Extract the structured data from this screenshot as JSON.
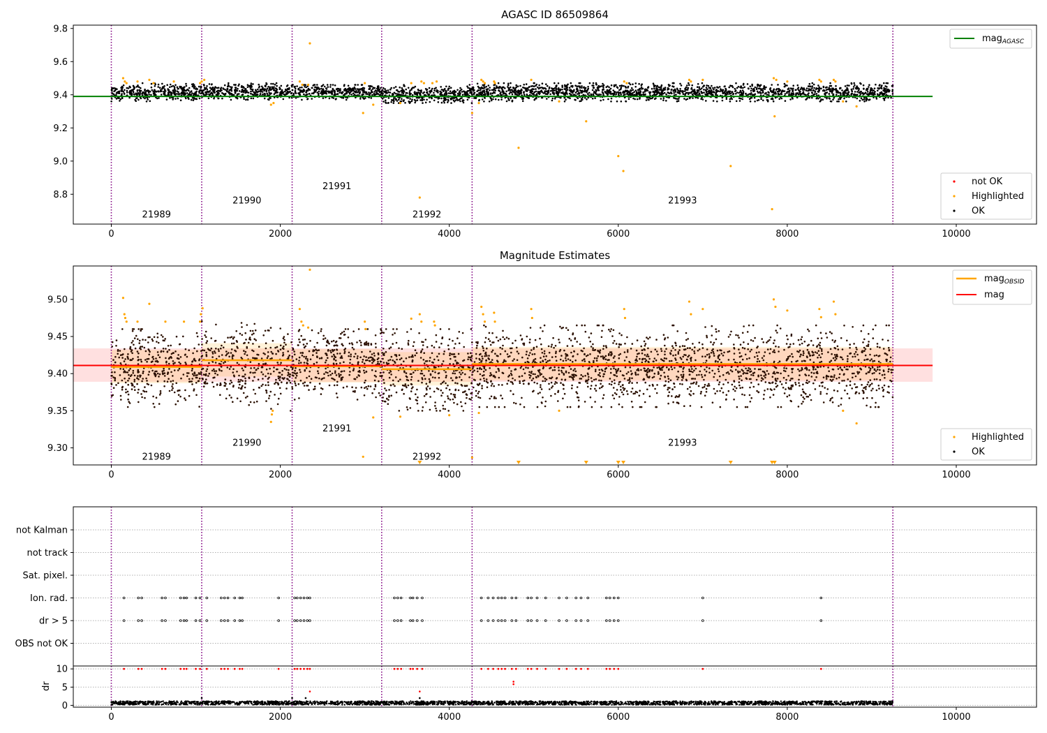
{
  "chart_data": [
    {
      "type": "scatter",
      "title": "AGASC ID 86509864",
      "xlim": [
        -450,
        10950
      ],
      "ylim": [
        8.62,
        9.82
      ],
      "xticks": [
        0,
        2000,
        4000,
        6000,
        8000,
        10000
      ],
      "yticks": [
        8.8,
        9.0,
        9.2,
        9.4,
        9.6,
        9.8
      ],
      "xtick_labels": [
        "0",
        "2000",
        "4000",
        "6000",
        "8000",
        "10000"
      ],
      "ytick_labels": [
        "8.8",
        "9.0",
        "9.2",
        "9.4",
        "9.6",
        "9.8"
      ],
      "grid": false,
      "legend_top": [
        {
          "label": "mag",
          "sub": "AGASC",
          "color": "#008000",
          "kind": "line"
        }
      ],
      "legend_bottom": [
        {
          "label": "not OK",
          "color": "#ff0000",
          "kind": "dot"
        },
        {
          "label": "Highlighted",
          "color": "#ffa500",
          "kind": "dot"
        },
        {
          "label": "OK",
          "color": "#000000",
          "kind": "dot"
        }
      ],
      "legend_top_position": "top-right",
      "legend_bottom_position": "lower-right",
      "lines": [
        {
          "name": "mag_AGASC",
          "y": 9.39,
          "x": [
            -450,
            9720
          ],
          "color": "#008000"
        }
      ],
      "series": [
        {
          "name": "OK",
          "color": "#000000",
          "segments": [
            {
              "x": [
                0,
                1070
              ],
              "y": [
                9.36,
                9.47
              ]
            },
            {
              "x": [
                1070,
                2140
              ],
              "y": [
                9.37,
                9.47
              ]
            },
            {
              "x": [
                2140,
                3200
              ],
              "y": [
                9.37,
                9.46
              ]
            },
            {
              "x": [
                3200,
                4270
              ],
              "y": [
                9.35,
                9.46
              ]
            },
            {
              "x": [
                4270,
                9250
              ],
              "y": [
                9.36,
                9.47
              ]
            }
          ]
        },
        {
          "name": "Highlighted",
          "color": "#ffa500",
          "points": [
            [
              140,
              9.5
            ],
            [
              160,
              9.48
            ],
            [
              180,
              9.47
            ],
            [
              310,
              9.48
            ],
            [
              450,
              9.49
            ],
            [
              500,
              9.47
            ],
            [
              740,
              9.48
            ],
            [
              1050,
              9.47
            ],
            [
              1070,
              9.48
            ],
            [
              1100,
              9.49
            ],
            [
              1890,
              9.34
            ],
            [
              1920,
              9.35
            ],
            [
              2230,
              9.48
            ],
            [
              2260,
              9.46
            ],
            [
              2330,
              9.46
            ],
            [
              2350,
              9.71
            ],
            [
              2980,
              9.29
            ],
            [
              3000,
              9.47
            ],
            [
              3100,
              9.34
            ],
            [
              3420,
              9.35
            ],
            [
              3550,
              9.47
            ],
            [
              3650,
              8.78
            ],
            [
              3670,
              9.48
            ],
            [
              3700,
              9.47
            ],
            [
              3800,
              9.47
            ],
            [
              3850,
              9.48
            ],
            [
              4270,
              9.29
            ],
            [
              4350,
              9.35
            ],
            [
              4380,
              9.49
            ],
            [
              4400,
              9.48
            ],
            [
              4420,
              9.47
            ],
            [
              4530,
              9.48
            ],
            [
              4540,
              9.47
            ],
            [
              4820,
              9.08
            ],
            [
              4970,
              9.49
            ],
            [
              5300,
              9.36
            ],
            [
              5620,
              9.24
            ],
            [
              6000,
              9.03
            ],
            [
              6060,
              8.94
            ],
            [
              6070,
              9.48
            ],
            [
              6100,
              9.47
            ],
            [
              6840,
              9.49
            ],
            [
              6860,
              9.48
            ],
            [
              7000,
              9.49
            ],
            [
              7330,
              8.97
            ],
            [
              7820,
              8.71
            ],
            [
              7840,
              9.5
            ],
            [
              7850,
              9.27
            ],
            [
              7870,
              9.49
            ],
            [
              8000,
              9.48
            ],
            [
              8380,
              9.49
            ],
            [
              8400,
              9.48
            ],
            [
              8550,
              9.49
            ],
            [
              8570,
              9.48
            ],
            [
              8660,
              9.36
            ],
            [
              8820,
              9.33
            ]
          ]
        }
      ],
      "obsid_boundaries": [
        0,
        1070,
        2140,
        3200,
        4270,
        9250
      ],
      "obsid_labels": [
        {
          "text": "21989",
          "x": 535,
          "y": 8.66
        },
        {
          "text": "21990",
          "x": 1605,
          "y": 8.745
        },
        {
          "text": "21991",
          "x": 2670,
          "y": 8.83
        },
        {
          "text": "21992",
          "x": 3735,
          "y": 8.66
        },
        {
          "text": "21993",
          "x": 6760,
          "y": 8.745
        }
      ]
    },
    {
      "type": "scatter",
      "title": "Magnitude Estimates",
      "xlim": [
        -450,
        10950
      ],
      "ylim": [
        9.277,
        9.545
      ],
      "xticks": [
        0,
        2000,
        4000,
        6000,
        8000,
        10000
      ],
      "yticks": [
        9.3,
        9.35,
        9.4,
        9.45,
        9.5
      ],
      "xtick_labels": [
        "0",
        "2000",
        "4000",
        "6000",
        "8000",
        "10000"
      ],
      "ytick_labels": [
        "9.30",
        "9.35",
        "9.40",
        "9.45",
        "9.50"
      ],
      "grid": false,
      "legend_top": [
        {
          "label": "mag",
          "sub": "OBSID",
          "color": "#ffa500",
          "kind": "line"
        },
        {
          "label": "mag",
          "sub": "",
          "color": "#ff0000",
          "kind": "line"
        }
      ],
      "legend_bottom": [
        {
          "label": "Highlighted",
          "color": "#ffa500",
          "kind": "dot"
        },
        {
          "label": "OK",
          "color": "#000000",
          "kind": "dot"
        }
      ],
      "legend_top_position": "top-right",
      "legend_bottom_position": "lower-right",
      "mag": {
        "y": 9.411,
        "x": [
          -450,
          9720
        ],
        "band": [
          9.389,
          9.434
        ],
        "color": "#ff0000"
      },
      "mag_obsid": [
        {
          "x": [
            0,
            1070
          ],
          "y": 9.409,
          "band": [
            9.387,
            9.432
          ]
        },
        {
          "x": [
            1070,
            2140
          ],
          "y": 9.418,
          "band": [
            9.396,
            9.441
          ]
        },
        {
          "x": [
            2140,
            3200
          ],
          "y": 9.41,
          "band": [
            9.388,
            9.433
          ]
        },
        {
          "x": [
            3200,
            4270
          ],
          "y": 9.406,
          "band": [
            9.384,
            9.429
          ]
        },
        {
          "x": [
            4270,
            9250
          ],
          "y": 9.413,
          "band": [
            9.391,
            9.436
          ]
        }
      ],
      "series": [
        {
          "name": "OK",
          "color": "#000000",
          "segments": [
            {
              "x": [
                0,
                1070
              ],
              "y": [
                9.355,
                9.46
              ]
            },
            {
              "x": [
                1070,
                2140
              ],
              "y": [
                9.35,
                9.475
              ]
            },
            {
              "x": [
                2140,
                3200
              ],
              "y": [
                9.365,
                9.46
              ]
            },
            {
              "x": [
                3200,
                4270
              ],
              "y": [
                9.35,
                9.46
              ]
            },
            {
              "x": [
                4270,
                9250
              ],
              "y": [
                9.355,
                9.465
              ]
            }
          ]
        },
        {
          "name": "Highlighted",
          "color": "#ffa500",
          "points": [
            [
              140,
              9.502
            ],
            [
              155,
              9.48
            ],
            [
              165,
              9.475
            ],
            [
              180,
              9.47
            ],
            [
              310,
              9.47
            ],
            [
              450,
              9.494
            ],
            [
              640,
              9.47
            ],
            [
              860,
              9.47
            ],
            [
              1050,
              9.47
            ],
            [
              1060,
              9.48
            ],
            [
              1080,
              9.488
            ],
            [
              1890,
              9.335
            ],
            [
              1900,
              9.345
            ],
            [
              1910,
              9.35
            ],
            [
              2230,
              9.487
            ],
            [
              2250,
              9.47
            ],
            [
              2270,
              9.465
            ],
            [
              2330,
              9.462
            ],
            [
              2350,
              9.54
            ],
            [
              2980,
              9.288
            ],
            [
              3000,
              9.47
            ],
            [
              3010,
              9.46
            ],
            [
              3100,
              9.341
            ],
            [
              3420,
              9.342
            ],
            [
              3550,
              9.474
            ],
            [
              3650,
              9.48
            ],
            [
              3670,
              9.47
            ],
            [
              3820,
              9.47
            ],
            [
              3830,
              9.465
            ],
            [
              4000,
              9.344
            ],
            [
              4270,
              9.287
            ],
            [
              4350,
              9.347
            ],
            [
              4380,
              9.49
            ],
            [
              4400,
              9.48
            ],
            [
              4420,
              9.47
            ],
            [
              4530,
              9.482
            ],
            [
              4540,
              9.47
            ],
            [
              4970,
              9.487
            ],
            [
              4980,
              9.475
            ],
            [
              5300,
              9.35
            ],
            [
              6070,
              9.487
            ],
            [
              6080,
              9.475
            ],
            [
              6840,
              9.497
            ],
            [
              6860,
              9.48
            ],
            [
              7000,
              9.487
            ],
            [
              7840,
              9.5
            ],
            [
              7860,
              9.49
            ],
            [
              8000,
              9.485
            ],
            [
              8380,
              9.487
            ],
            [
              8400,
              9.476
            ],
            [
              8550,
              9.497
            ],
            [
              8570,
              9.48
            ],
            [
              8660,
              9.35
            ],
            [
              8820,
              9.333
            ]
          ]
        },
        {
          "name": "Highlighted (below range)",
          "color": "#ffa500",
          "marker": "triangle-down",
          "points": [
            [
              3650,
              9.28
            ],
            [
              4820,
              9.28
            ],
            [
              5620,
              9.28
            ],
            [
              6000,
              9.28
            ],
            [
              6060,
              9.28
            ],
            [
              7330,
              9.28
            ],
            [
              7820,
              9.28
            ],
            [
              7850,
              9.28
            ]
          ]
        }
      ],
      "obsid_boundaries": [
        0,
        1070,
        2140,
        3200,
        4270,
        9250
      ],
      "obsid_labels": [
        {
          "text": "21989",
          "x": 535,
          "y": 9.284
        },
        {
          "text": "21990",
          "x": 1605,
          "y": 9.303
        },
        {
          "text": "21991",
          "x": 2670,
          "y": 9.322
        },
        {
          "text": "21992",
          "x": 3735,
          "y": 9.284
        },
        {
          "text": "21993",
          "x": 6760,
          "y": 9.303
        }
      ]
    },
    {
      "type": "scatter",
      "title": "",
      "xlim": [
        -450,
        10950
      ],
      "xticks": [],
      "categories": [
        "OBS not OK",
        "dr > 5",
        "Ion. rad.",
        "Sat. pixel.",
        "not track",
        "not Kalman"
      ],
      "grid": true,
      "obsid_boundaries": [
        0,
        1070,
        2140,
        3200,
        4270,
        9250
      ],
      "flag_times": [
        150,
        320,
        360,
        600,
        640,
        820,
        860,
        890,
        1000,
        1050,
        1130,
        1300,
        1340,
        1380,
        1460,
        1520,
        1550,
        1980,
        2170,
        2200,
        2240,
        2280,
        2320,
        2350,
        3350,
        3390,
        3430,
        3540,
        3570,
        3620,
        3680,
        4380,
        4460,
        4520,
        4580,
        4620,
        4660,
        4740,
        4790,
        4930,
        4970,
        5040,
        5140,
        5300,
        5390,
        5500,
        5560,
        5640,
        5860,
        5900,
        5950,
        6000,
        7000,
        8400
      ],
      "flag_rows": [
        "dr > 5",
        "Ion. rad."
      ]
    },
    {
      "type": "scatter",
      "title": "",
      "xlim": [
        -450,
        10950
      ],
      "ylim": [
        -0.5,
        10.8
      ],
      "xticks": [
        0,
        2000,
        4000,
        6000,
        8000,
        10000
      ],
      "yticks": [
        0,
        5,
        10
      ],
      "xtick_labels": [
        "0",
        "2000",
        "4000",
        "6000",
        "8000",
        "10000"
      ],
      "ytick_labels": [
        "0",
        "5",
        "10"
      ],
      "ylabel": "dr",
      "grid": true,
      "clip_value": 10,
      "series": [
        {
          "name": "OK",
          "color": "#000000",
          "x": [
            0,
            9250
          ],
          "y": [
            0,
            1.6
          ]
        },
        {
          "name": "not OK",
          "color": "#ff0000",
          "points": [
            [
              4760,
              6.5
            ],
            [
              4760,
              5.8
            ],
            [
              2350,
              3.8
            ],
            [
              3650,
              3.8
            ]
          ]
        }
      ]
    }
  ]
}
